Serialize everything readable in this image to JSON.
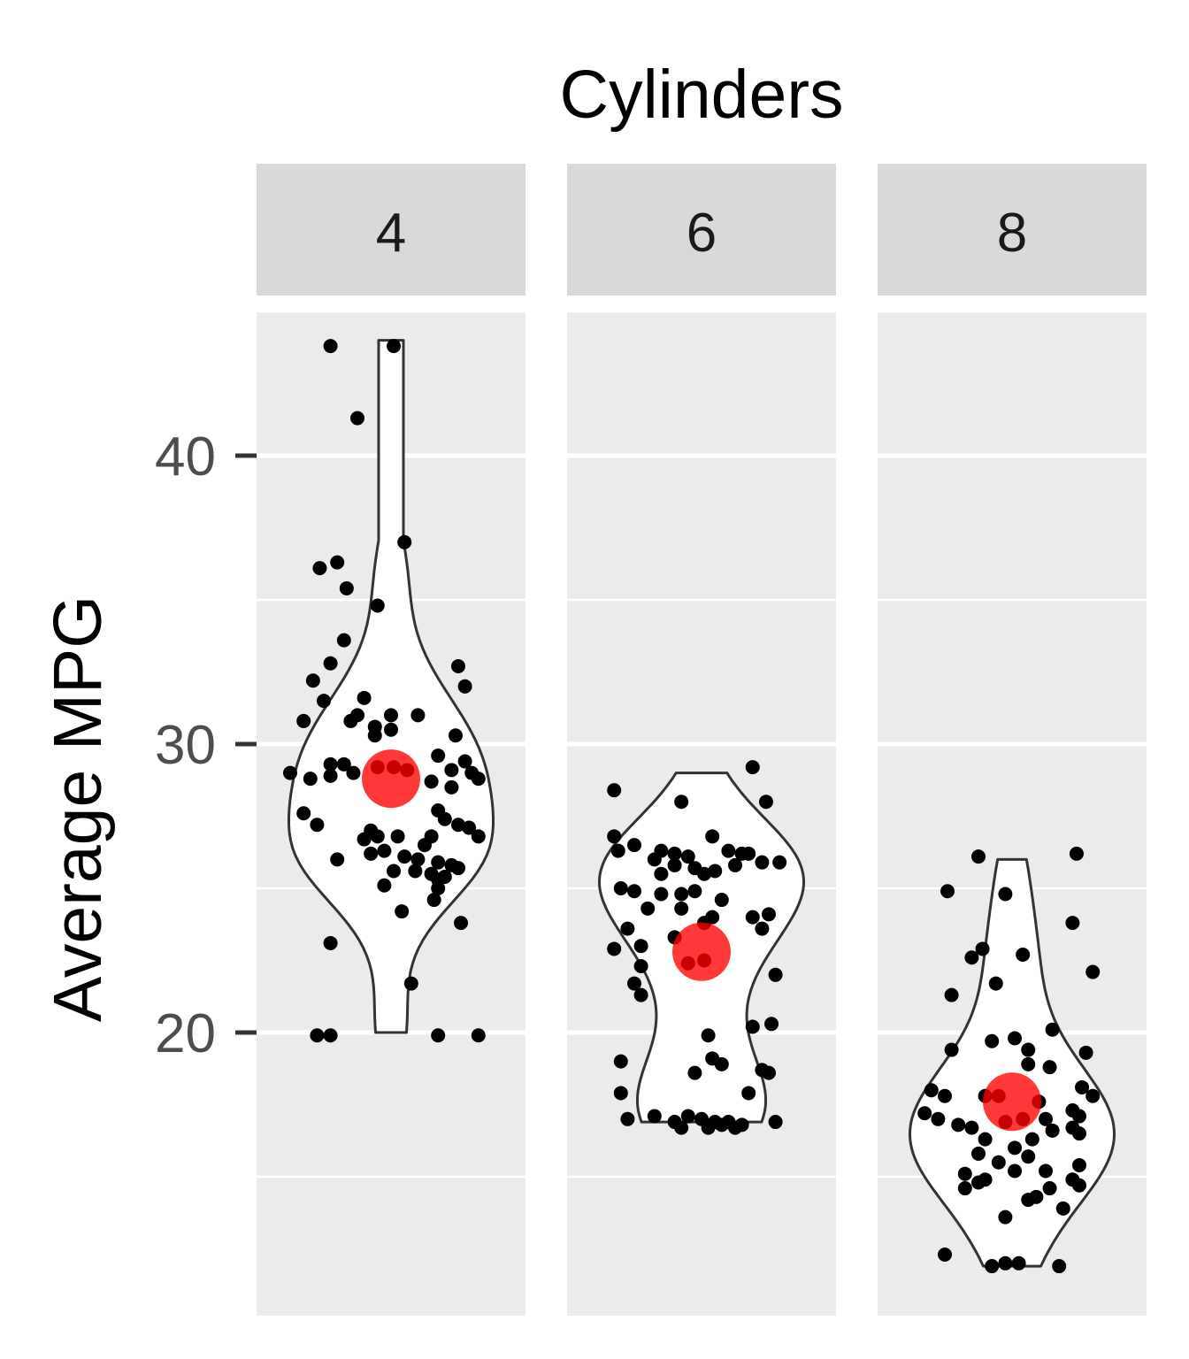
{
  "chart_data": {
    "type": "violin",
    "title": "Cylinders",
    "ylabel": "Average MPG",
    "ylim": [
      10.5,
      46.3
    ],
    "yticks": [
      20,
      30,
      40
    ],
    "grid": true,
    "facets": [
      {
        "label": "4",
        "mean": 28.8,
        "violin": {
          "min": 20,
          "max": 44,
          "mode": 28.5
        },
        "points": [
          [
            -0.45,
            43.8
          ],
          [
            -0.25,
            41.3
          ],
          [
            0.02,
            43.8
          ],
          [
            0.1,
            37.0
          ],
          [
            -0.53,
            36.1
          ],
          [
            -0.4,
            36.3
          ],
          [
            -0.33,
            35.4
          ],
          [
            -0.1,
            34.8
          ],
          [
            -0.35,
            33.6
          ],
          [
            -0.45,
            32.8
          ],
          [
            0.5,
            32.7
          ],
          [
            -0.58,
            32.2
          ],
          [
            0.55,
            32.0
          ],
          [
            -0.5,
            31.5
          ],
          [
            -0.2,
            31.6
          ],
          [
            -0.65,
            30.8
          ],
          [
            -0.25,
            31.0
          ],
          [
            -0.3,
            30.8
          ],
          [
            0.0,
            31.0
          ],
          [
            0.2,
            31.0
          ],
          [
            -0.12,
            30.6
          ],
          [
            -0.12,
            30.3
          ],
          [
            0.48,
            30.3
          ],
          [
            0.0,
            30.5
          ],
          [
            -0.75,
            29.0
          ],
          [
            -0.6,
            28.8
          ],
          [
            -0.45,
            29.3
          ],
          [
            -0.35,
            29.3
          ],
          [
            -0.45,
            28.9
          ],
          [
            -0.28,
            29.0
          ],
          [
            -0.1,
            29.2
          ],
          [
            0.02,
            29.2
          ],
          [
            0.12,
            29.1
          ],
          [
            0.35,
            29.6
          ],
          [
            0.55,
            29.4
          ],
          [
            0.6,
            29.0
          ],
          [
            0.3,
            28.7
          ],
          [
            0.45,
            29.1
          ],
          [
            0.65,
            28.8
          ],
          [
            0.45,
            28.5
          ],
          [
            -0.65,
            27.6
          ],
          [
            -0.55,
            27.2
          ],
          [
            0.35,
            27.7
          ],
          [
            0.4,
            27.4
          ],
          [
            0.5,
            27.2
          ],
          [
            0.58,
            27.1
          ],
          [
            -0.15,
            27.0
          ],
          [
            -0.1,
            26.8
          ],
          [
            0.05,
            26.8
          ],
          [
            0.3,
            26.8
          ],
          [
            0.65,
            26.8
          ],
          [
            0.25,
            26.5
          ],
          [
            -0.2,
            26.7
          ],
          [
            -0.15,
            26.2
          ],
          [
            -0.05,
            26.3
          ],
          [
            0.1,
            26.1
          ],
          [
            0.2,
            26.0
          ],
          [
            0.35,
            25.9
          ],
          [
            0.45,
            25.8
          ],
          [
            0.5,
            25.7
          ],
          [
            -0.4,
            26.0
          ],
          [
            0.02,
            25.6
          ],
          [
            0.18,
            25.6
          ],
          [
            0.3,
            25.5
          ],
          [
            0.4,
            25.4
          ],
          [
            0.35,
            25.3
          ],
          [
            -0.05,
            25.1
          ],
          [
            0.35,
            25.0
          ],
          [
            0.32,
            24.6
          ],
          [
            0.08,
            24.2
          ],
          [
            0.52,
            23.8
          ],
          [
            -0.45,
            23.1
          ],
          [
            0.15,
            21.7
          ],
          [
            -0.55,
            19.9
          ],
          [
            -0.45,
            19.9
          ],
          [
            0.35,
            19.9
          ],
          [
            0.65,
            19.9
          ]
        ]
      },
      {
        "label": "6",
        "mean": 22.8,
        "violin": {
          "min": 16.9,
          "max": 29,
          "mode": 25.5
        },
        "points": [
          [
            0.38,
            29.2
          ],
          [
            -0.65,
            28.4
          ],
          [
            -0.15,
            28.0
          ],
          [
            0.48,
            28.0
          ],
          [
            -0.65,
            26.8
          ],
          [
            -0.5,
            26.5
          ],
          [
            0.08,
            26.8
          ],
          [
            -0.62,
            26.3
          ],
          [
            -0.3,
            26.3
          ],
          [
            -0.2,
            26.2
          ],
          [
            -0.1,
            26.1
          ],
          [
            0.2,
            26.3
          ],
          [
            0.3,
            26.2
          ],
          [
            0.35,
            26.2
          ],
          [
            -0.35,
            26.0
          ],
          [
            -0.2,
            25.8
          ],
          [
            -0.05,
            25.7
          ],
          [
            0.1,
            25.6
          ],
          [
            0.25,
            25.8
          ],
          [
            0.45,
            25.9
          ],
          [
            0.58,
            25.9
          ],
          [
            -0.3,
            25.5
          ],
          [
            0.02,
            25.5
          ],
          [
            -0.6,
            25.0
          ],
          [
            -0.5,
            24.9
          ],
          [
            -0.3,
            24.8
          ],
          [
            -0.15,
            24.8
          ],
          [
            -0.05,
            24.9
          ],
          [
            0.15,
            24.6
          ],
          [
            -0.4,
            24.3
          ],
          [
            -0.15,
            24.3
          ],
          [
            0.08,
            24.0
          ],
          [
            0.02,
            23.8
          ],
          [
            0.38,
            24.0
          ],
          [
            0.45,
            23.6
          ],
          [
            0.5,
            24.1
          ],
          [
            -0.55,
            23.6
          ],
          [
            -0.2,
            23.3
          ],
          [
            0.02,
            22.5
          ],
          [
            -0.45,
            23.0
          ],
          [
            -0.65,
            22.9
          ],
          [
            -0.45,
            22.3
          ],
          [
            -0.1,
            22.4
          ],
          [
            0.55,
            22.0
          ],
          [
            -0.5,
            21.7
          ],
          [
            -0.45,
            21.3
          ],
          [
            0.52,
            20.3
          ],
          [
            0.38,
            20.2
          ],
          [
            0.05,
            19.9
          ],
          [
            -0.6,
            19.0
          ],
          [
            0.08,
            19.1
          ],
          [
            0.15,
            18.9
          ],
          [
            0.45,
            18.7
          ],
          [
            0.5,
            18.6
          ],
          [
            -0.05,
            18.6
          ],
          [
            -0.6,
            17.9
          ],
          [
            0.35,
            17.9
          ],
          [
            -0.55,
            17.0
          ],
          [
            -0.35,
            17.1
          ],
          [
            -0.1,
            17.1
          ],
          [
            0.0,
            17.0
          ],
          [
            0.1,
            16.9
          ],
          [
            0.15,
            16.8
          ],
          [
            0.2,
            16.9
          ],
          [
            0.25,
            16.7
          ],
          [
            0.3,
            16.8
          ],
          [
            0.55,
            16.9
          ],
          [
            -0.15,
            16.7
          ],
          [
            0.05,
            16.7
          ],
          [
            -0.2,
            16.9
          ]
        ]
      },
      {
        "label": "8",
        "mean": 17.6,
        "violin": {
          "min": 11.9,
          "max": 26,
          "mode": 16.8
        },
        "points": [
          [
            -0.25,
            26.1
          ],
          [
            0.48,
            26.2
          ],
          [
            -0.48,
            24.9
          ],
          [
            -0.05,
            24.8
          ],
          [
            0.45,
            23.8
          ],
          [
            -0.22,
            22.9
          ],
          [
            -0.3,
            22.6
          ],
          [
            0.08,
            22.7
          ],
          [
            0.6,
            22.1
          ],
          [
            -0.12,
            21.7
          ],
          [
            -0.45,
            21.3
          ],
          [
            -0.15,
            19.7
          ],
          [
            0.3,
            20.1
          ],
          [
            0.02,
            19.8
          ],
          [
            -0.45,
            19.4
          ],
          [
            0.12,
            19.4
          ],
          [
            0.55,
            19.3
          ],
          [
            0.12,
            18.9
          ],
          [
            0.28,
            18.8
          ],
          [
            -0.6,
            18.0
          ],
          [
            -0.5,
            17.8
          ],
          [
            -0.2,
            17.8
          ],
          [
            -0.1,
            17.8
          ],
          [
            0.2,
            17.6
          ],
          [
            0.52,
            18.1
          ],
          [
            0.6,
            17.8
          ],
          [
            -0.65,
            17.2
          ],
          [
            -0.55,
            17.0
          ],
          [
            -0.4,
            16.8
          ],
          [
            -0.3,
            16.7
          ],
          [
            -0.05,
            16.9
          ],
          [
            0.08,
            17.0
          ],
          [
            0.25,
            17.0
          ],
          [
            0.45,
            17.3
          ],
          [
            0.5,
            17.1
          ],
          [
            -0.2,
            16.3
          ],
          [
            0.15,
            16.3
          ],
          [
            0.3,
            16.6
          ],
          [
            0.45,
            16.7
          ],
          [
            0.5,
            16.5
          ],
          [
            -0.25,
            15.8
          ],
          [
            0.02,
            16.0
          ],
          [
            0.12,
            15.7
          ],
          [
            -0.1,
            15.5
          ],
          [
            0.02,
            15.2
          ],
          [
            0.25,
            15.2
          ],
          [
            0.5,
            15.4
          ],
          [
            -0.35,
            15.1
          ],
          [
            -0.25,
            14.8
          ],
          [
            -0.2,
            14.9
          ],
          [
            0.45,
            14.9
          ],
          [
            0.5,
            14.7
          ],
          [
            -0.35,
            14.6
          ],
          [
            0.12,
            14.2
          ],
          [
            0.18,
            14.3
          ],
          [
            0.28,
            14.6
          ],
          [
            0.38,
            13.9
          ],
          [
            -0.05,
            13.6
          ],
          [
            -0.5,
            12.3
          ],
          [
            -0.15,
            11.9
          ],
          [
            0.05,
            12.0
          ],
          [
            0.35,
            11.9
          ],
          [
            -0.05,
            12.0
          ]
        ]
      }
    ]
  }
}
